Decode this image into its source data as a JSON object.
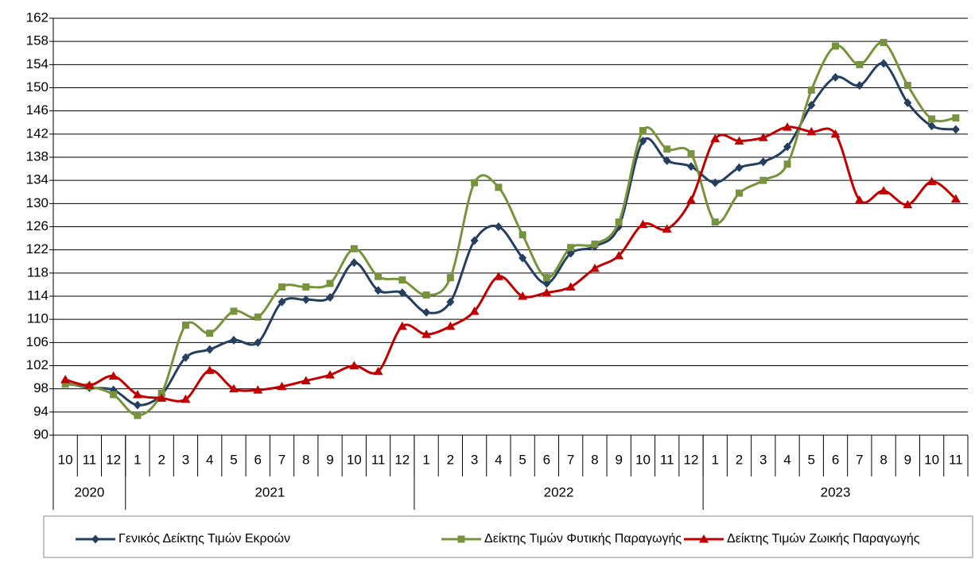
{
  "chart_data": {
    "type": "line",
    "categories": [
      "10",
      "11",
      "12",
      "1",
      "2",
      "3",
      "4",
      "5",
      "6",
      "7",
      "8",
      "9",
      "10",
      "11",
      "12",
      "1",
      "2",
      "3",
      "4",
      "5",
      "6",
      "7",
      "8",
      "9",
      "10",
      "11",
      "12",
      "1",
      "2",
      "3",
      "4",
      "5",
      "6",
      "7",
      "8",
      "9",
      "10",
      "11"
    ],
    "years": [
      "2020",
      "2021",
      "2022",
      "2023"
    ],
    "ylim": [
      90,
      162
    ],
    "yticks": [
      90,
      94,
      98,
      102,
      106,
      110,
      114,
      118,
      122,
      126,
      130,
      134,
      138,
      142,
      146,
      150,
      154,
      158,
      162
    ],
    "grid": true,
    "smooth": true,
    "legend": "bottom",
    "series": [
      {
        "name": "Γενικός Δείκτης Τιμών Εκροών",
        "color": "#243f60",
        "marker": "diamond",
        "values": [
          99.0,
          98.2,
          97.8,
          95.2,
          97.0,
          103.4,
          104.8,
          106.4,
          106.0,
          113.0,
          113.4,
          113.8,
          119.8,
          115.0,
          114.6,
          111.2,
          113.0,
          123.6,
          126.0,
          120.6,
          116.2,
          121.4,
          122.6,
          126.0,
          140.8,
          137.4,
          136.4,
          133.6,
          136.2,
          137.2,
          139.8,
          147.0,
          151.8,
          150.4,
          154.2,
          147.4,
          143.4,
          142.8
        ]
      },
      {
        "name": "Δείκτης Τιμών Φυτικής Παραγωγής",
        "color": "#77933c",
        "marker": "square",
        "values": [
          98.8,
          98.4,
          97.0,
          93.4,
          97.2,
          109.0,
          107.6,
          111.4,
          110.4,
          115.6,
          115.6,
          116.2,
          122.2,
          117.4,
          116.8,
          114.2,
          117.2,
          133.6,
          132.8,
          124.6,
          117.2,
          122.4,
          123.0,
          126.8,
          142.6,
          139.4,
          138.6,
          126.8,
          131.8,
          134.0,
          136.8,
          149.6,
          157.2,
          154.0,
          157.8,
          150.4,
          144.6,
          144.8
        ]
      },
      {
        "name": "Δείκτης Τιμών Ζωικής Παραγωγής",
        "color": "#c00000",
        "marker": "triangle",
        "values": [
          99.6,
          98.6,
          100.2,
          97.0,
          96.4,
          96.2,
          101.2,
          98.0,
          97.8,
          98.4,
          99.4,
          100.4,
          102.0,
          101.0,
          108.8,
          107.4,
          108.8,
          111.4,
          117.4,
          114.0,
          114.6,
          115.6,
          118.8,
          121.0,
          126.4,
          125.6,
          130.6,
          141.2,
          140.8,
          141.4,
          143.2,
          142.4,
          142.0,
          130.6,
          132.2,
          129.8,
          133.8,
          130.8
        ]
      }
    ]
  }
}
